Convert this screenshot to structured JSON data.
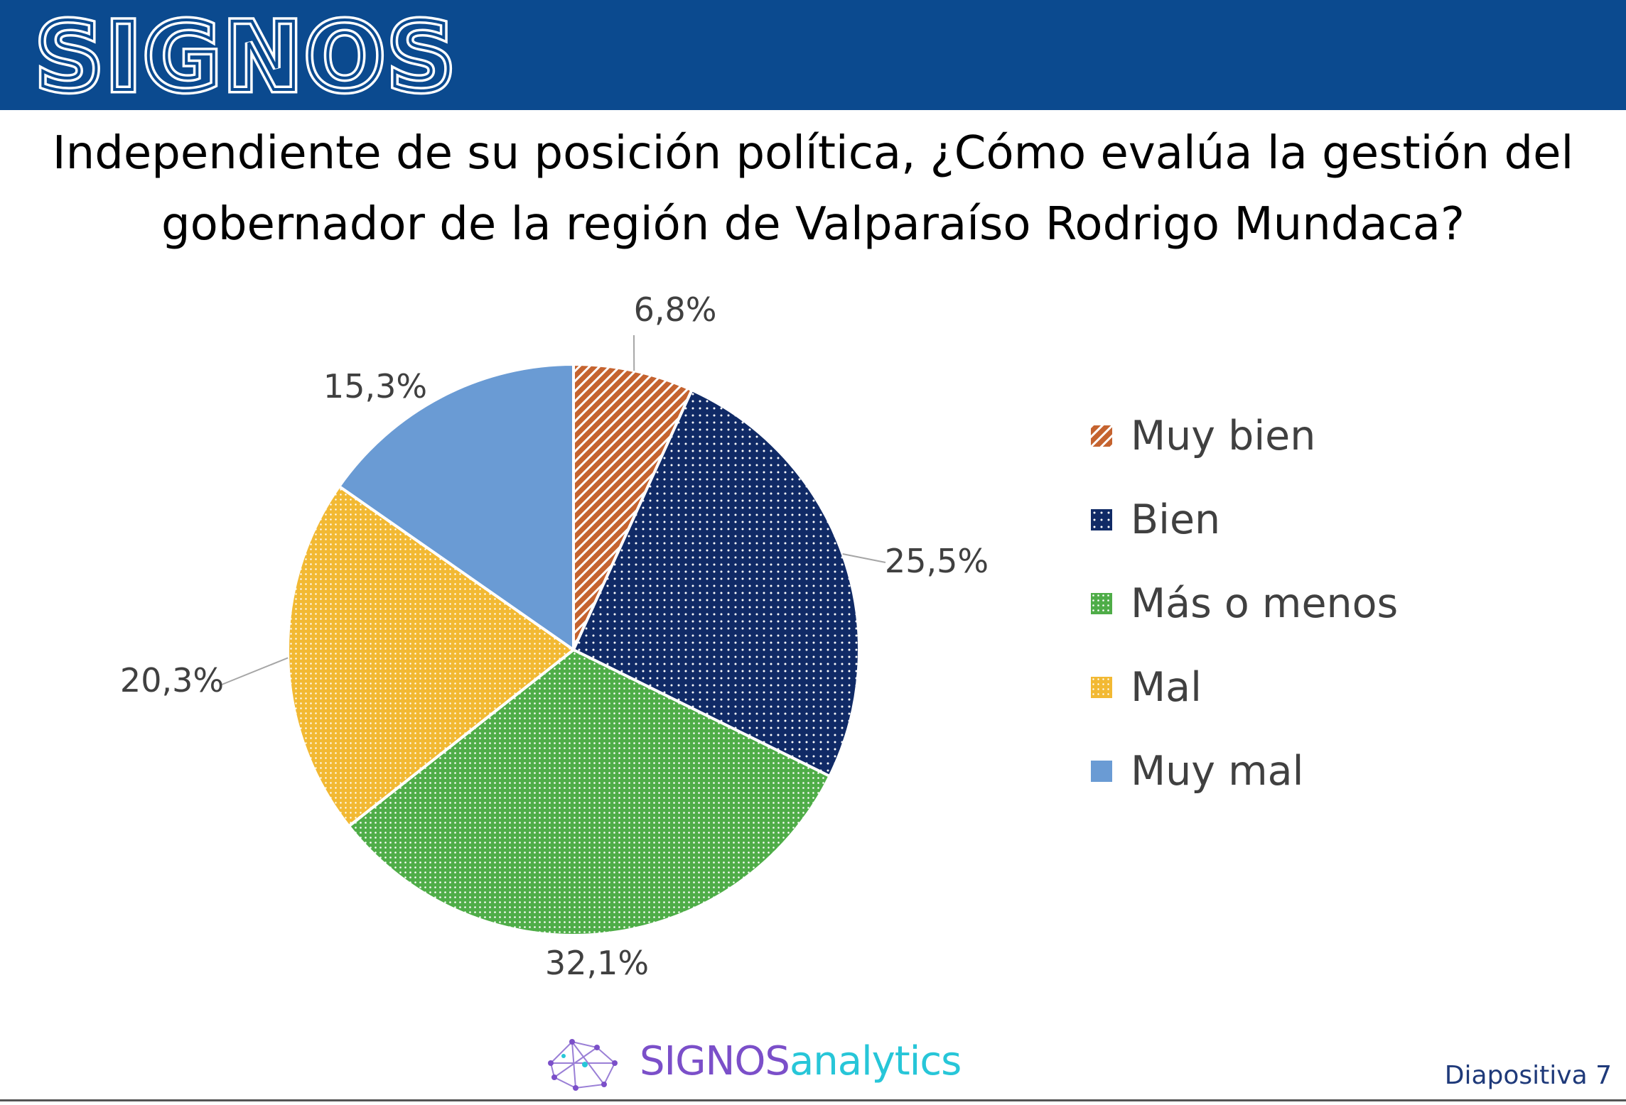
{
  "header": {
    "brand": "SIGNOS",
    "colors": {
      "bar": "#0b4a8f",
      "logo": "#ffffff"
    }
  },
  "question": {
    "line1": "Independiente de su posición política, ¿Cómo evalúa la gestión del",
    "line2": "gobernador de la región de Valparaíso Rodrigo Mundaca?"
  },
  "chart_data": {
    "type": "pie",
    "title": "",
    "categories": [
      "Muy bien",
      "Bien",
      "Más o menos",
      "Mal",
      "Muy mal"
    ],
    "values": [
      6.8,
      25.5,
      32.1,
      20.3,
      15.3
    ],
    "value_labels": [
      "6,8%",
      "25,5%",
      "32,1%",
      "20,3%",
      "15,3%"
    ],
    "colors": [
      "#c5632f",
      "#102a66",
      "#4fad48",
      "#f2b933",
      "#6a9bd4"
    ],
    "patterns": [
      "diagonal-stripes",
      "dots",
      "dots",
      "dots",
      "solid"
    ],
    "start_angle_deg": 0,
    "direction": "clockwise",
    "legend_position": "right"
  },
  "footer": {
    "brand_signos": "SIGNOS",
    "brand_analytics": "analytics",
    "slide_label": "Diapositiva 7"
  }
}
